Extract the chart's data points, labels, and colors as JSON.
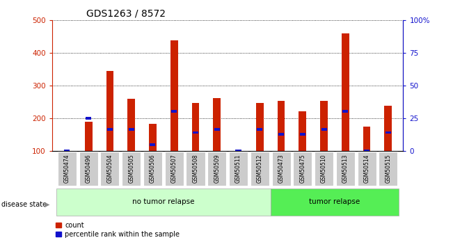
{
  "title": "GDS1263 / 8572",
  "samples": [
    "GSM50474",
    "GSM50496",
    "GSM50504",
    "GSM50505",
    "GSM50506",
    "GSM50507",
    "GSM50508",
    "GSM50509",
    "GSM50511",
    "GSM50512",
    "GSM50473",
    "GSM50475",
    "GSM50510",
    "GSM50513",
    "GSM50514",
    "GSM50515"
  ],
  "counts": [
    100,
    190,
    345,
    260,
    183,
    440,
    247,
    262,
    100,
    247,
    253,
    222,
    253,
    460,
    175,
    240
  ],
  "percentile_ranks": [
    100,
    200,
    167,
    167,
    120,
    222,
    157,
    167,
    100,
    167,
    152,
    152,
    167,
    222,
    100,
    157
  ],
  "no_tumor_indices": [
    0,
    9
  ],
  "tumor_indices": [
    10,
    15
  ],
  "ylim_left": [
    100,
    500
  ],
  "left_ticks": [
    100,
    200,
    300,
    400,
    500
  ],
  "right_tick_labels": [
    "0",
    "25",
    "50",
    "75",
    "100%"
  ],
  "bar_color": "#cc2200",
  "percentile_color": "#1111cc",
  "no_tumor_color": "#ccffcc",
  "tumor_color": "#55ee55",
  "tick_label_bg": "#cccccc",
  "bar_width": 0.35
}
